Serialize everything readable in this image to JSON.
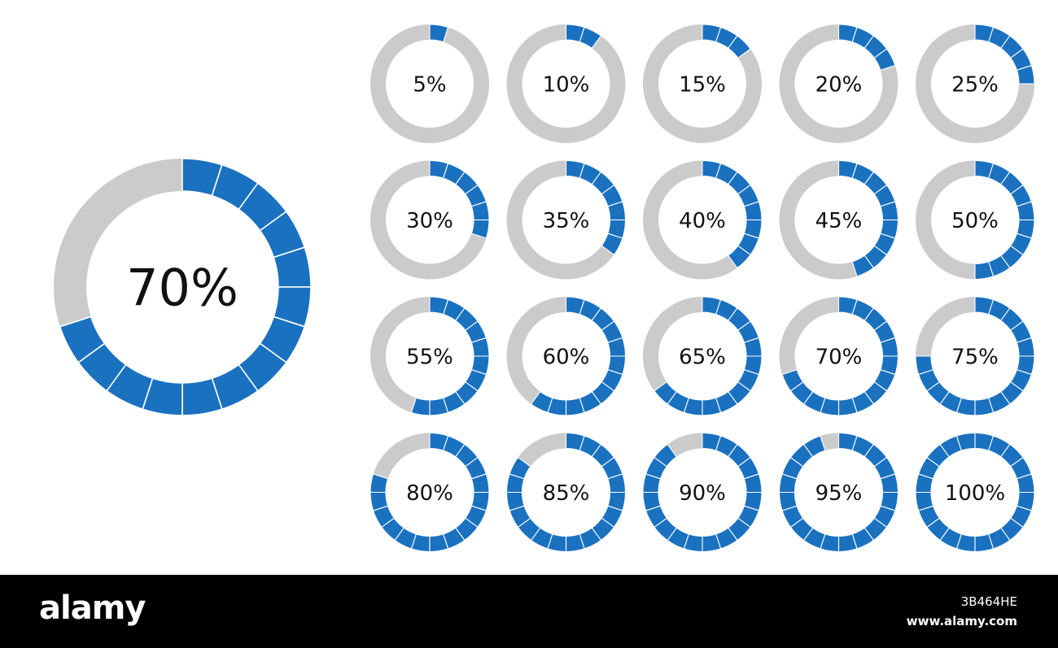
{
  "colors": {
    "filled": "#1a71bf",
    "track": "#cbcbcb",
    "segment_divider": "#ffffff",
    "text": "#111111",
    "background": "#ffffff",
    "footer_bg": "#000000",
    "footer_text": "#ffffff"
  },
  "chart_data": [
    {
      "type": "pie",
      "variant": "segmented-donut",
      "segments": 20,
      "values": [
        70
      ],
      "labels": [
        "70%"
      ]
    },
    {
      "type": "pie",
      "variant": "segmented-donut-grid",
      "segments": 20,
      "grid": {
        "rows": 4,
        "cols": 5
      },
      "values": [
        5,
        10,
        15,
        20,
        25,
        30,
        35,
        40,
        45,
        50,
        55,
        60,
        65,
        70,
        75,
        80,
        85,
        90,
        95,
        100
      ],
      "labels": [
        "5%",
        "10%",
        "15%",
        "20%",
        "25%",
        "30%",
        "35%",
        "40%",
        "45%",
        "50%",
        "55%",
        "60%",
        "65%",
        "70%",
        "75%",
        "80%",
        "85%",
        "90%",
        "95%",
        "100%"
      ]
    }
  ],
  "footer": {
    "brand": "alamy",
    "image_id": "3B464HE",
    "site": "www.alamy.com"
  }
}
